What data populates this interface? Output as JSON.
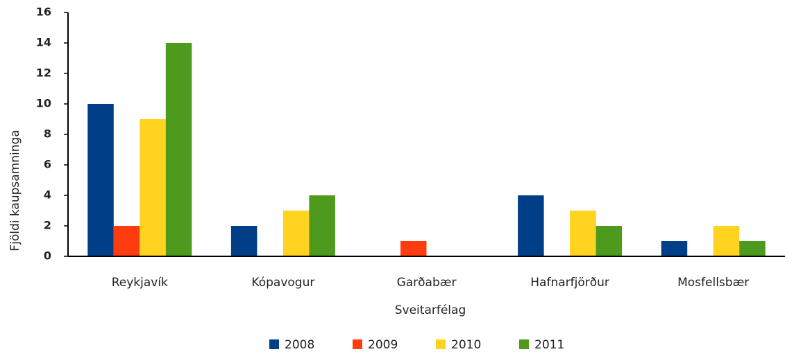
{
  "chart_data": {
    "type": "bar",
    "categories": [
      "Reykjavík",
      "Kópavogur",
      "Garðabær",
      "Hafnarfjörður",
      "Mosfellsbær"
    ],
    "series": [
      {
        "name": "2008",
        "color": "#003f87",
        "values": [
          10,
          2,
          0,
          4,
          1
        ]
      },
      {
        "name": "2009",
        "color": "#ff3c0f",
        "values": [
          2,
          0,
          1,
          0,
          0
        ]
      },
      {
        "name": "2010",
        "color": "#ffd320",
        "values": [
          9,
          3,
          0,
          3,
          2
        ]
      },
      {
        "name": "2011",
        "color": "#4e9a1c",
        "values": [
          14,
          4,
          0,
          2,
          1
        ]
      }
    ],
    "x_label": "Sveitarfélag",
    "y_label": "Fjöldi kaupsamninga",
    "ylim": [
      0,
      16
    ],
    "yticks": [
      0,
      2,
      4,
      6,
      8,
      10,
      12,
      14,
      16
    ],
    "grid": false,
    "legend": "bottom"
  }
}
